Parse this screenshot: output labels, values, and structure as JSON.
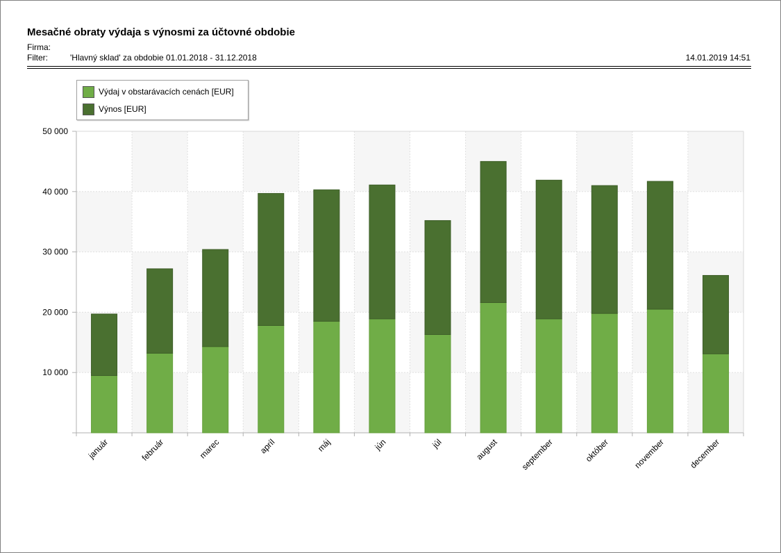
{
  "report": {
    "title": "Mesačné obraty výdaja s výnosmi za účtovné obdobie",
    "firma_label": "Firma:",
    "firma_value": "",
    "filter_label": "Filter:",
    "filter_value": "'Hlavný sklad' za obdobie 01.01.2018 - 31.12.2018",
    "timestamp": "14.01.2019 14:51"
  },
  "colors": {
    "vydaj": "#70ad47",
    "vynos": "#4a7030"
  },
  "chart_data": {
    "type": "bar",
    "stacked": true,
    "categories": [
      "január",
      "február",
      "marec",
      "apríl",
      "máj",
      "jún",
      "júl",
      "august",
      "september",
      "október",
      "november",
      "december"
    ],
    "series": [
      {
        "name": "Výdaj v obstarávacích cenách [EUR]",
        "values": [
          9500,
          13200,
          14300,
          17800,
          18500,
          18900,
          16300,
          21600,
          18900,
          19800,
          20500,
          13100
        ]
      },
      {
        "name": "Výnos [EUR]",
        "values": [
          10200,
          14000,
          16100,
          21900,
          21800,
          22200,
          18900,
          23400,
          23000,
          21200,
          21200,
          13000
        ]
      }
    ],
    "ylim": [
      0,
      50000
    ],
    "yticks": [
      10000,
      20000,
      30000,
      40000,
      50000
    ],
    "ytick_labels": [
      "10 000",
      "20 000",
      "30 000",
      "40 000",
      "50 000"
    ],
    "grid": true,
    "legend_position": "top-left",
    "title": "",
    "xlabel": "",
    "ylabel": ""
  }
}
